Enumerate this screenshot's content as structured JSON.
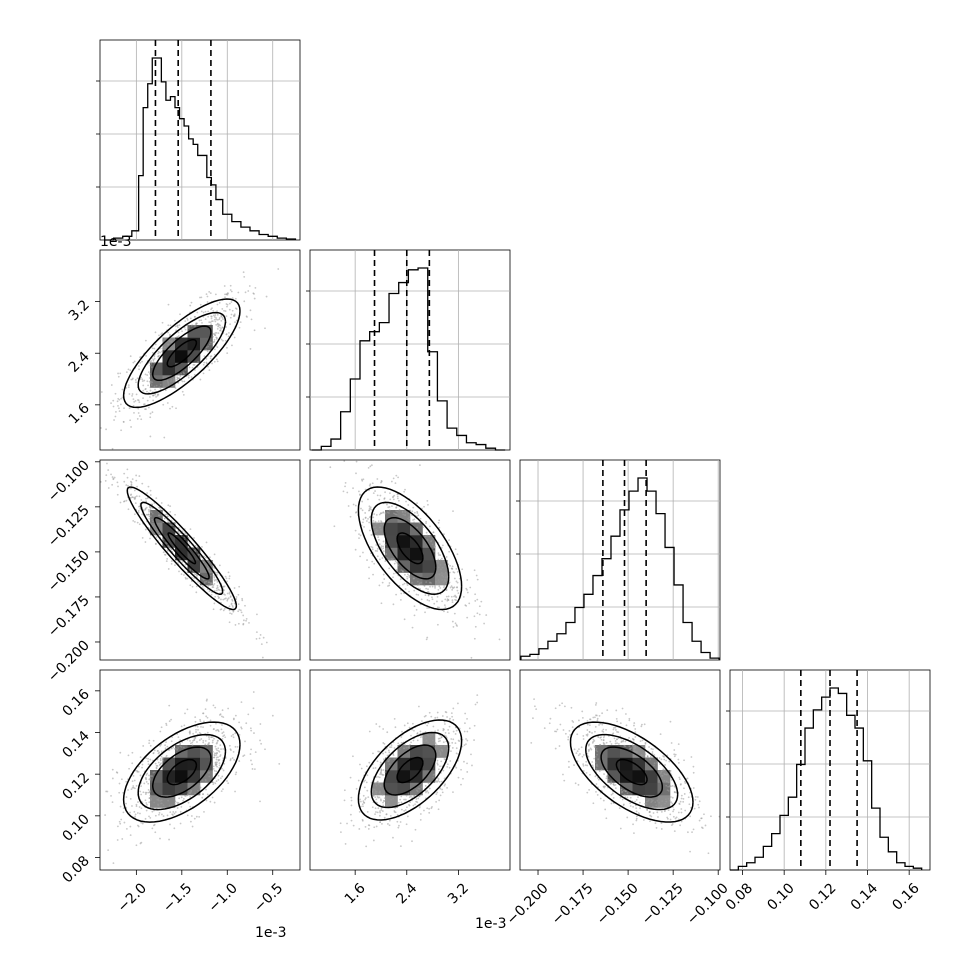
{
  "chart_data": {
    "type": "corner",
    "n_params": 4,
    "offset_text": "1e-3",
    "quantiles": [
      0.16,
      0.5,
      0.84
    ],
    "params": [
      {
        "index": 0,
        "scale_text": "1e-3",
        "range": [
          -2.4,
          -0.2
        ],
        "ticks": [
          -2.0,
          -1.5,
          -1.0,
          -0.5
        ],
        "tick_labels": [
          "−2.0",
          "−1.5",
          "−1.0",
          "−0.5"
        ],
        "quantile_lines": [
          -1.79,
          -1.54,
          -1.18
        ],
        "hist_x": [
          -2.3,
          -2.2,
          -2.1,
          -2.0,
          -1.95,
          -1.9,
          -1.85,
          -1.8,
          -1.75,
          -1.7,
          -1.65,
          -1.6,
          -1.55,
          -1.5,
          -1.45,
          -1.4,
          -1.35,
          -1.3,
          -1.25,
          -1.2,
          -1.15,
          -1.1,
          -1.0,
          -0.9,
          -0.8,
          -0.7,
          -0.6,
          -0.5,
          -0.4,
          -0.3
        ],
        "hist_counts": [
          0,
          0.01,
          0.02,
          0.05,
          0.35,
          0.72,
          0.85,
          0.99,
          0.99,
          0.86,
          0.76,
          0.78,
          0.72,
          0.66,
          0.62,
          0.55,
          0.52,
          0.46,
          0.46,
          0.34,
          0.3,
          0.22,
          0.14,
          0.1,
          0.07,
          0.05,
          0.03,
          0.02,
          0.01,
          0.005
        ]
      },
      {
        "index": 1,
        "scale_text": "1e-3",
        "range": [
          0.9,
          4.0
        ],
        "ticks": [
          1.6,
          2.4,
          3.2
        ],
        "tick_labels": [
          "1.6",
          "2.4",
          "3.2"
        ],
        "quantile_lines": [
          1.9,
          2.4,
          2.75
        ],
        "hist_x": [
          1.0,
          1.15,
          1.3,
          1.45,
          1.6,
          1.75,
          1.9,
          2.05,
          2.2,
          2.35,
          2.5,
          2.65,
          2.8,
          2.95,
          3.1,
          3.25,
          3.4,
          3.55,
          3.7,
          3.85
        ],
        "hist_counts": [
          0,
          0.02,
          0.06,
          0.21,
          0.39,
          0.6,
          0.65,
          0.7,
          0.86,
          0.92,
          0.99,
          1.0,
          0.54,
          0.27,
          0.12,
          0.08,
          0.04,
          0.03,
          0.01,
          0
        ]
      },
      {
        "index": 2,
        "range": [
          -0.21,
          -0.099
        ],
        "ticks": [
          -0.2,
          -0.175,
          -0.15,
          -0.125,
          -0.1
        ],
        "tick_labels": [
          "−0.200",
          "−0.175",
          "−0.150",
          "−0.125",
          "−0.100"
        ],
        "y_tick_labels": [
          "−0.100",
          "−0.125",
          "−0.150",
          "−0.175",
          "−0.200"
        ],
        "quantile_lines": [
          -0.164,
          -0.152,
          -0.14
        ],
        "hist_x": [
          -0.207,
          -0.202,
          -0.197,
          -0.192,
          -0.187,
          -0.182,
          -0.177,
          -0.172,
          -0.167,
          -0.162,
          -0.157,
          -0.152,
          -0.147,
          -0.142,
          -0.137,
          -0.132,
          -0.127,
          -0.122,
          -0.117,
          -0.112,
          -0.107,
          -0.102
        ],
        "hist_counts": [
          0.02,
          0.03,
          0.06,
          0.1,
          0.14,
          0.2,
          0.28,
          0.35,
          0.45,
          0.54,
          0.66,
          0.8,
          0.9,
          0.97,
          0.9,
          0.78,
          0.6,
          0.4,
          0.2,
          0.1,
          0.04,
          0.01
        ]
      },
      {
        "index": 3,
        "range": [
          0.074,
          0.17
        ],
        "ticks": [
          0.08,
          0.1,
          0.12,
          0.14,
          0.16
        ],
        "tick_labels": [
          "0.08",
          "0.10",
          "0.12",
          "0.14",
          "0.16"
        ],
        "quantile_lines": [
          0.108,
          0.122,
          0.135
        ],
        "hist_x": [
          0.076,
          0.08,
          0.084,
          0.088,
          0.092,
          0.096,
          0.1,
          0.104,
          0.108,
          0.112,
          0.116,
          0.12,
          0.124,
          0.128,
          0.132,
          0.136,
          0.14,
          0.144,
          0.148,
          0.152,
          0.156,
          0.16,
          0.164
        ],
        "hist_counts": [
          0.0,
          0.02,
          0.04,
          0.07,
          0.13,
          0.2,
          0.3,
          0.4,
          0.58,
          0.78,
          0.88,
          0.95,
          1.0,
          0.97,
          0.85,
          0.78,
          0.6,
          0.34,
          0.18,
          0.1,
          0.04,
          0.02,
          0.01
        ]
      }
    ],
    "pairs": [
      {
        "x": 0,
        "y": 1,
        "center": [
          -1.5,
          2.4
        ],
        "sd": [
          0.32,
          0.42
        ],
        "corr": 0.78
      },
      {
        "x": 0,
        "y": 2,
        "center": [
          -1.5,
          -0.148
        ],
        "sd": [
          0.3,
          0.017
        ],
        "corr": -0.94
      },
      {
        "x": 1,
        "y": 2,
        "center": [
          2.45,
          -0.148
        ],
        "sd": [
          0.4,
          0.017
        ],
        "corr": -0.62
      },
      {
        "x": 0,
        "y": 3,
        "center": [
          -1.5,
          0.121
        ],
        "sd": [
          0.32,
          0.012
        ],
        "corr": 0.55
      },
      {
        "x": 1,
        "y": 3,
        "center": [
          2.45,
          0.122
        ],
        "sd": [
          0.4,
          0.012
        ],
        "corr": 0.58
      },
      {
        "x": 2,
        "y": 3,
        "center": [
          -0.148,
          0.121
        ],
        "sd": [
          0.017,
          0.012
        ],
        "corr": -0.6
      }
    ],
    "grid": true,
    "hist_color": "#000000",
    "point_color": "#9a9a9a",
    "contour_color": "#000000"
  }
}
